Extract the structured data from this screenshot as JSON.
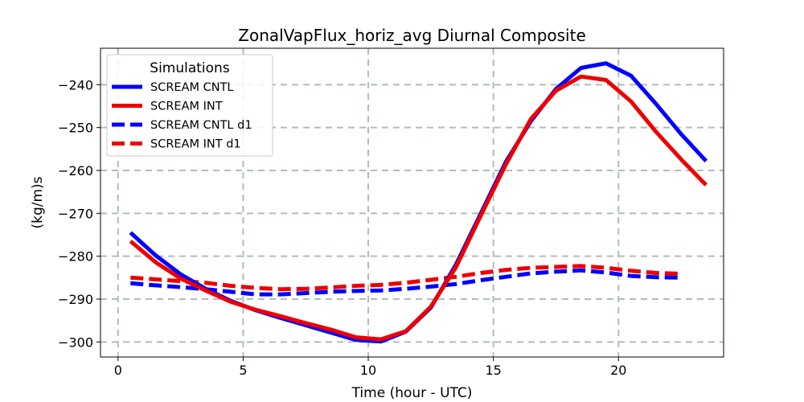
{
  "chart_data": {
    "type": "line",
    "title": "ZonalVapFlux_horiz_avg Diurnal Composite",
    "xlabel": "Time (hour - UTC)",
    "ylabel": "(kg/m)s",
    "xlim": [
      -0.7,
      24.2
    ],
    "ylim": [
      -303.5,
      -231.5
    ],
    "xticks": [
      0,
      5,
      10,
      15,
      20
    ],
    "yticks": [
      -300,
      -290,
      -280,
      -270,
      -260,
      -250,
      -240
    ],
    "xtick_labels": [
      "0",
      "5",
      "10",
      "15",
      "20"
    ],
    "ytick_labels": [
      "−300",
      "−290",
      "−280",
      "−270",
      "−260",
      "−250",
      "−240"
    ],
    "grid": true,
    "legend": {
      "title": "Simulations",
      "placement": "top-left"
    },
    "series": [
      {
        "name": "SCREAM CNTL",
        "color": "#0000ff",
        "style": "solid",
        "x": [
          0.5,
          1.5,
          2.5,
          3.5,
          4.5,
          5.5,
          6.5,
          7.5,
          8.5,
          9.5,
          10.5,
          11.5,
          12.5,
          13.5,
          14.5,
          15.5,
          16.5,
          17.5,
          18.5,
          19.5,
          20.5,
          21.5,
          22.5,
          23.5
        ],
        "values": [
          -274.5,
          -279.8,
          -284.2,
          -287.6,
          -290.4,
          -292.6,
          -294.4,
          -296.1,
          -297.8,
          -299.5,
          -299.9,
          -297.6,
          -292.0,
          -282.0,
          -270.0,
          -258.0,
          -248.5,
          -241.0,
          -236.1,
          -235.0,
          -237.9,
          -244.5,
          -251.5,
          -257.8
        ]
      },
      {
        "name": "SCREAM INT",
        "color": "#ee0000",
        "style": "solid",
        "x": [
          0.5,
          1.5,
          2.5,
          3.5,
          4.5,
          5.5,
          6.5,
          7.5,
          8.5,
          9.5,
          10.5,
          11.5,
          12.5,
          13.5,
          14.5,
          15.5,
          16.5,
          17.5,
          18.5,
          19.5,
          20.5,
          21.5,
          22.5,
          23.5
        ],
        "values": [
          -276.5,
          -281.4,
          -285.2,
          -288.0,
          -290.6,
          -292.5,
          -294.0,
          -295.6,
          -297.1,
          -298.9,
          -299.4,
          -297.5,
          -291.8,
          -282.6,
          -270.5,
          -258.6,
          -248.0,
          -241.4,
          -238.1,
          -238.9,
          -243.9,
          -251.0,
          -257.4,
          -263.4
        ]
      },
      {
        "name": "SCREAM CNTL d1",
        "color": "#0000ff",
        "style": "dashed",
        "x": [
          0.5,
          1.5,
          2.5,
          3.5,
          4.5,
          5.5,
          6.5,
          7.5,
          8.5,
          9.5,
          10.5,
          11.5,
          12.5,
          13.5,
          14.5,
          15.5,
          16.5,
          17.5,
          18.5,
          19.5,
          20.5,
          21.5,
          22.5
        ],
        "values": [
          -286.3,
          -286.8,
          -287.2,
          -287.7,
          -288.3,
          -288.9,
          -288.9,
          -288.6,
          -288.3,
          -288.1,
          -288.0,
          -287.6,
          -287.1,
          -286.5,
          -285.6,
          -284.8,
          -284.0,
          -283.6,
          -283.3,
          -283.8,
          -284.6,
          -284.9,
          -285.0
        ]
      },
      {
        "name": "SCREAM INT d1",
        "color": "#ee0000",
        "style": "dashed",
        "x": [
          0.5,
          1.5,
          2.5,
          3.5,
          4.5,
          5.5,
          6.5,
          7.5,
          8.5,
          9.5,
          10.5,
          11.5,
          12.5,
          13.5,
          14.5,
          15.5,
          16.5,
          17.5,
          18.5,
          19.5,
          20.5,
          21.5,
          22.5
        ],
        "values": [
          -285.0,
          -285.4,
          -285.8,
          -286.2,
          -286.9,
          -287.4,
          -287.7,
          -287.6,
          -287.3,
          -286.9,
          -286.7,
          -286.2,
          -285.5,
          -284.8,
          -283.9,
          -283.2,
          -282.7,
          -282.5,
          -282.3,
          -282.7,
          -283.4,
          -283.9,
          -284.1
        ]
      }
    ]
  }
}
